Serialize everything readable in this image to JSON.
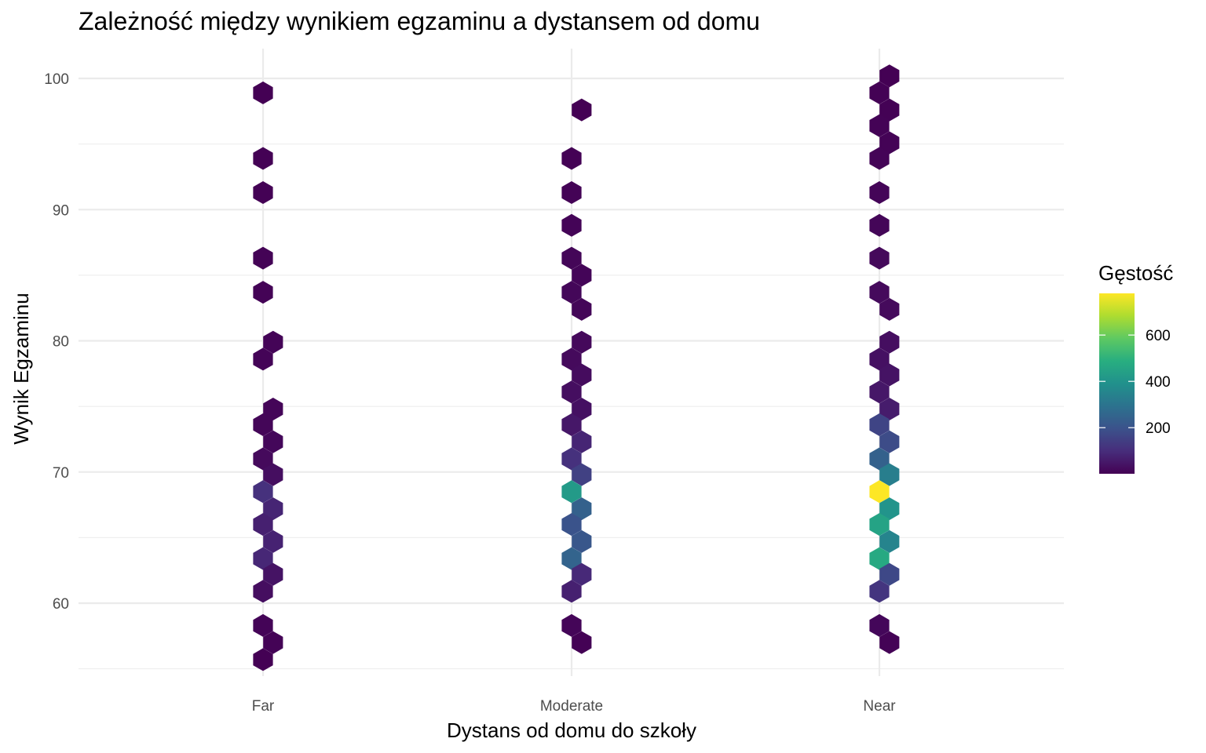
{
  "chart_data": {
    "type": "hexbin",
    "title": "Zależność między wynikiem egzaminu a dystansem od domu",
    "xlabel": "Dystans od domu do szkoły",
    "ylabel": "Wynik Egzaminu",
    "categories": [
      "Far",
      "Moderate",
      "Near"
    ],
    "ylim": [
      55,
      102
    ],
    "y_ticks": [
      60,
      70,
      80,
      90,
      100
    ],
    "grid": true,
    "legend": {
      "title": "Gęstość",
      "position": "right",
      "ticks": [
        200,
        400,
        600
      ],
      "range": [
        1,
        780
      ],
      "colormap": "viridis"
    },
    "bins": [
      {
        "x": "Far",
        "side": "center",
        "y": 98.9,
        "count": 2
      },
      {
        "x": "Far",
        "side": "center",
        "y": 93.9,
        "count": 3
      },
      {
        "x": "Far",
        "side": "center",
        "y": 91.3,
        "count": 4
      },
      {
        "x": "Far",
        "side": "center",
        "y": 86.3,
        "count": 5
      },
      {
        "x": "Far",
        "side": "center",
        "y": 83.7,
        "count": 6
      },
      {
        "x": "Far",
        "side": "right",
        "y": 79.9,
        "count": 8
      },
      {
        "x": "Far",
        "side": "center",
        "y": 78.6,
        "count": 8
      },
      {
        "x": "Far",
        "side": "right",
        "y": 74.8,
        "count": 10
      },
      {
        "x": "Far",
        "side": "center",
        "y": 73.6,
        "count": 12
      },
      {
        "x": "Far",
        "side": "right",
        "y": 72.3,
        "count": 15
      },
      {
        "x": "Far",
        "side": "center",
        "y": 71.0,
        "count": 20
      },
      {
        "x": "Far",
        "side": "right",
        "y": 69.8,
        "count": 30
      },
      {
        "x": "Far",
        "side": "center",
        "y": 68.5,
        "count": 110
      },
      {
        "x": "Far",
        "side": "right",
        "y": 67.2,
        "count": 80
      },
      {
        "x": "Far",
        "side": "center",
        "y": 66.0,
        "count": 70
      },
      {
        "x": "Far",
        "side": "right",
        "y": 64.7,
        "count": 75
      },
      {
        "x": "Far",
        "side": "center",
        "y": 63.4,
        "count": 85
      },
      {
        "x": "Far",
        "side": "right",
        "y": 62.2,
        "count": 40
      },
      {
        "x": "Far",
        "side": "center",
        "y": 60.9,
        "count": 30
      },
      {
        "x": "Far",
        "side": "center",
        "y": 58.3,
        "count": 8
      },
      {
        "x": "Far",
        "side": "right",
        "y": 57.0,
        "count": 5
      },
      {
        "x": "Far",
        "side": "center",
        "y": 55.7,
        "count": 2
      },
      {
        "x": "Moderate",
        "side": "right",
        "y": 97.6,
        "count": 2
      },
      {
        "x": "Moderate",
        "side": "center",
        "y": 93.9,
        "count": 4
      },
      {
        "x": "Moderate",
        "side": "center",
        "y": 91.3,
        "count": 6
      },
      {
        "x": "Moderate",
        "side": "center",
        "y": 88.8,
        "count": 8
      },
      {
        "x": "Moderate",
        "side": "center",
        "y": 86.3,
        "count": 12
      },
      {
        "x": "Moderate",
        "side": "right",
        "y": 85.0,
        "count": 10
      },
      {
        "x": "Moderate",
        "side": "center",
        "y": 83.7,
        "count": 14
      },
      {
        "x": "Moderate",
        "side": "right",
        "y": 82.4,
        "count": 12
      },
      {
        "x": "Moderate",
        "side": "right",
        "y": 79.9,
        "count": 18
      },
      {
        "x": "Moderate",
        "side": "center",
        "y": 78.6,
        "count": 22
      },
      {
        "x": "Moderate",
        "side": "right",
        "y": 77.4,
        "count": 25
      },
      {
        "x": "Moderate",
        "side": "center",
        "y": 76.1,
        "count": 30
      },
      {
        "x": "Moderate",
        "side": "right",
        "y": 74.8,
        "count": 35
      },
      {
        "x": "Moderate",
        "side": "center",
        "y": 73.6,
        "count": 50
      },
      {
        "x": "Moderate",
        "side": "right",
        "y": 72.3,
        "count": 80
      },
      {
        "x": "Moderate",
        "side": "center",
        "y": 71.0,
        "count": 110
      },
      {
        "x": "Moderate",
        "side": "right",
        "y": 69.8,
        "count": 150
      },
      {
        "x": "Moderate",
        "side": "center",
        "y": 68.5,
        "count": 420
      },
      {
        "x": "Moderate",
        "side": "right",
        "y": 67.2,
        "count": 240
      },
      {
        "x": "Moderate",
        "side": "center",
        "y": 66.0,
        "count": 200
      },
      {
        "x": "Moderate",
        "side": "right",
        "y": 64.7,
        "count": 210
      },
      {
        "x": "Moderate",
        "side": "center",
        "y": 63.4,
        "count": 250
      },
      {
        "x": "Moderate",
        "side": "right",
        "y": 62.2,
        "count": 90
      },
      {
        "x": "Moderate",
        "side": "center",
        "y": 60.9,
        "count": 70
      },
      {
        "x": "Moderate",
        "side": "center",
        "y": 58.3,
        "count": 10
      },
      {
        "x": "Moderate",
        "side": "right",
        "y": 57.0,
        "count": 4
      },
      {
        "x": "Near",
        "side": "right",
        "y": 100.2,
        "count": 2
      },
      {
        "x": "Near",
        "side": "center",
        "y": 98.9,
        "count": 3
      },
      {
        "x": "Near",
        "side": "right",
        "y": 97.6,
        "count": 4
      },
      {
        "x": "Near",
        "side": "center",
        "y": 96.4,
        "count": 5
      },
      {
        "x": "Near",
        "side": "right",
        "y": 95.1,
        "count": 6
      },
      {
        "x": "Near",
        "side": "center",
        "y": 93.9,
        "count": 8
      },
      {
        "x": "Near",
        "side": "center",
        "y": 91.3,
        "count": 10
      },
      {
        "x": "Near",
        "side": "center",
        "y": 88.8,
        "count": 12
      },
      {
        "x": "Near",
        "side": "center",
        "y": 86.3,
        "count": 18
      },
      {
        "x": "Near",
        "side": "center",
        "y": 83.7,
        "count": 22
      },
      {
        "x": "Near",
        "side": "right",
        "y": 82.4,
        "count": 20
      },
      {
        "x": "Near",
        "side": "right",
        "y": 79.9,
        "count": 30
      },
      {
        "x": "Near",
        "side": "center",
        "y": 78.6,
        "count": 35
      },
      {
        "x": "Near",
        "side": "right",
        "y": 77.4,
        "count": 40
      },
      {
        "x": "Near",
        "side": "center",
        "y": 76.1,
        "count": 50
      },
      {
        "x": "Near",
        "side": "right",
        "y": 74.8,
        "count": 60
      },
      {
        "x": "Near",
        "side": "center",
        "y": 73.6,
        "count": 160
      },
      {
        "x": "Near",
        "side": "right",
        "y": 72.3,
        "count": 180
      },
      {
        "x": "Near",
        "side": "center",
        "y": 71.0,
        "count": 240
      },
      {
        "x": "Near",
        "side": "right",
        "y": 69.8,
        "count": 330
      },
      {
        "x": "Near",
        "side": "center",
        "y": 68.5,
        "count": 780
      },
      {
        "x": "Near",
        "side": "right",
        "y": 67.2,
        "count": 400
      },
      {
        "x": "Near",
        "side": "center",
        "y": 66.0,
        "count": 450
      },
      {
        "x": "Near",
        "side": "right",
        "y": 64.7,
        "count": 350
      },
      {
        "x": "Near",
        "side": "center",
        "y": 63.4,
        "count": 470
      },
      {
        "x": "Near",
        "side": "right",
        "y": 62.2,
        "count": 170
      },
      {
        "x": "Near",
        "side": "center",
        "y": 60.9,
        "count": 120
      },
      {
        "x": "Near",
        "side": "center",
        "y": 58.3,
        "count": 15
      },
      {
        "x": "Near",
        "side": "right",
        "y": 57.0,
        "count": 6
      }
    ]
  }
}
